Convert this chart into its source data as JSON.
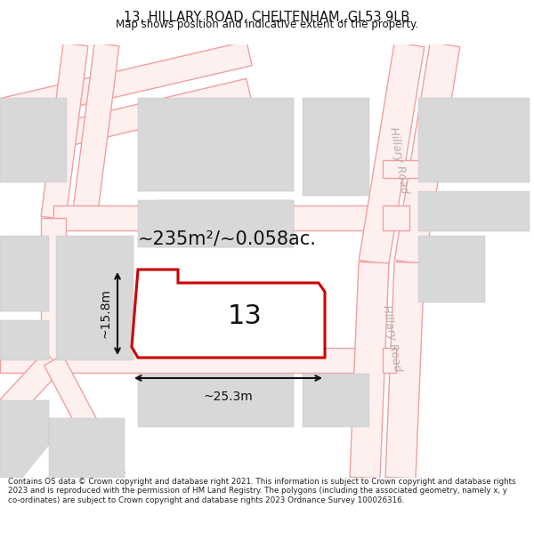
{
  "title": "13, HILLARY ROAD, CHELTENHAM, GL53 9LB",
  "subtitle": "Map shows position and indicative extent of the property.",
  "footer": "Contains OS data © Crown copyright and database right 2021. This information is subject to Crown copyright and database rights 2023 and is reproduced with the permission of HM Land Registry. The polygons (including the associated geometry, namely x, y co-ordinates) are subject to Crown copyright and database rights 2023 Ordnance Survey 100026316.",
  "area_label": "~235m²/~0.058ac.",
  "label_number": "13",
  "dim_width": "~25.3m",
  "dim_height": "~15.8m",
  "street_label_1": "Hillary Road",
  "street_label_2": "Hillary Road",
  "bg_color": "#ffffff",
  "map_bg": "#ffffff",
  "block_fill": "#d8d8d8",
  "road_line_color": "#f0a0a0",
  "plot_line_color": "#cc0000",
  "dim_line_color": "#111111",
  "street_text_color": "#b0b0b0",
  "title_color": "#111111",
  "footer_color": "#222222"
}
